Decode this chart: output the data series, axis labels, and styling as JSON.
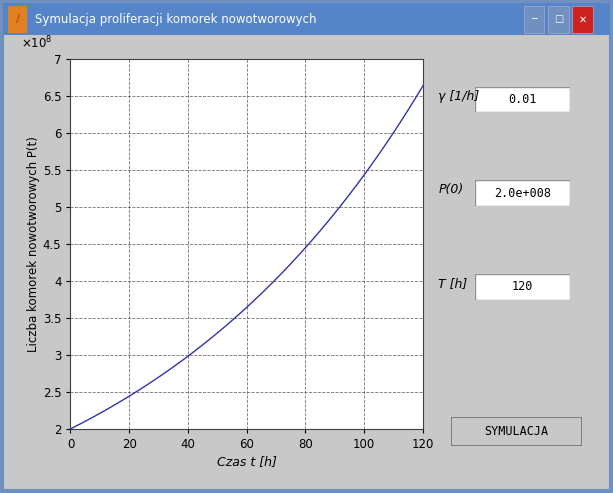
{
  "title_bar": "Symulacja proliferacji komorek nowotworowych",
  "xlabel": "Czas t [h]",
  "ylabel": "Liczba komorek nowotworowych P(t)",
  "gamma": 0.01,
  "P0": 200000000.0,
  "T": 120,
  "t_start": 0,
  "t_end": 120,
  "ylim": [
    200000000.0,
    700000000.0
  ],
  "xlim": [
    0,
    120
  ],
  "yticks": [
    200000000.0,
    250000000.0,
    300000000.0,
    350000000.0,
    400000000.0,
    450000000.0,
    500000000.0,
    550000000.0,
    600000000.0,
    650000000.0,
    700000000.0
  ],
  "xticks": [
    0,
    20,
    40,
    60,
    80,
    100,
    120
  ],
  "line_color": "#3333aa",
  "gui_bg": "#c8c8c8",
  "plot_bg": "#ffffff",
  "title_bar_color1": "#6090d0",
  "title_bar_color2": "#4070c0",
  "border_color": "#8090b0",
  "gamma_label": "γ [1/h]",
  "gamma_value": "0.01",
  "P0_label": "P(0)",
  "P0_value": "2.0e+008",
  "T_label": "T [h]",
  "T_value": "120",
  "button_label": "SYMULACJA",
  "figsize": [
    6.13,
    4.93
  ],
  "dpi": 100
}
